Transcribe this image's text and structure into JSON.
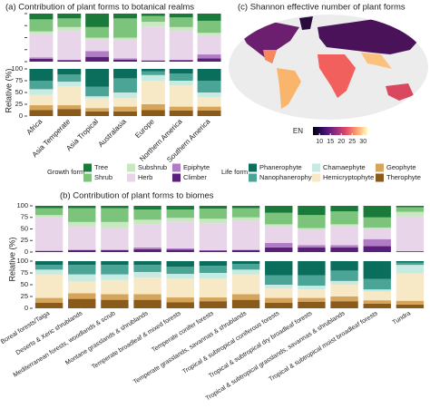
{
  "chart_data": [
    {
      "type": "stacked_bar",
      "title": "(a) Contribution of plant forms to botanical realms",
      "ylabel": "Relative (%)",
      "categories": [
        "Africa",
        "Asia Temperate",
        "Asia Tropical",
        "Australasia",
        "Europe",
        "Northern America",
        "Southern America"
      ],
      "ylim": [
        0,
        100
      ],
      "yticks": [
        0,
        25,
        50,
        75,
        100
      ],
      "growth_form": [
        [
          12,
          10,
          28,
          10,
          5,
          8,
          15
        ],
        [
          25,
          18,
          22,
          40,
          12,
          20,
          25
        ],
        [
          6,
          8,
          3,
          5,
          10,
          8,
          5
        ],
        [
          48,
          60,
          25,
          38,
          70,
          60,
          40
        ],
        [
          3,
          1,
          12,
          3,
          1,
          1,
          8
        ],
        [
          6,
          3,
          10,
          4,
          2,
          3,
          7
        ]
      ],
      "life_form": [
        [
          25,
          12,
          38,
          20,
          5,
          10,
          25
        ],
        [
          18,
          15,
          20,
          30,
          8,
          15,
          25
        ],
        [
          12,
          10,
          5,
          12,
          12,
          10,
          10
        ],
        [
          22,
          40,
          20,
          18,
          50,
          45,
          20
        ],
        [
          10,
          8,
          7,
          10,
          12,
          8,
          8
        ],
        [
          13,
          15,
          10,
          10,
          13,
          12,
          12
        ]
      ]
    },
    {
      "type": "stacked_bar",
      "title": "(b) Contribution of plant forms to biomes",
      "ylabel": "Relative (%)",
      "categories": [
        "Boreal forests/Taiga",
        "Deserts & Xeric shrublands",
        "Mediterranean forests, woodlands & scrub",
        "Montane grasslands & shrublands",
        "Temperate broadleaf & mixed forests",
        "Temperate conifer forests",
        "Temperate grasslands, savannas & shrublands",
        "Tropical & subtropical coniferous forests",
        "Tropical & subtropical dry broadleaf forests",
        "Tropical & subtropical grasslands, savannas & shrublands",
        "Tropical & subtropical moist broadleaf forests",
        "Tundra"
      ],
      "ylim": [
        0,
        100
      ],
      "yticks": [
        0,
        25,
        50,
        75,
        100
      ],
      "growth_form": [
        [
          5,
          5,
          5,
          8,
          8,
          6,
          5,
          15,
          20,
          12,
          25,
          3
        ],
        [
          15,
          30,
          30,
          22,
          18,
          22,
          20,
          25,
          28,
          28,
          22,
          10
        ],
        [
          5,
          10,
          12,
          10,
          8,
          10,
          8,
          5,
          4,
          5,
          3,
          10
        ],
        [
          72,
          50,
          48,
          50,
          58,
          58,
          62,
          35,
          33,
          40,
          22,
          75
        ],
        [
          1,
          1,
          1,
          4,
          3,
          1,
          1,
          10,
          5,
          5,
          15,
          1
        ],
        [
          2,
          4,
          4,
          6,
          5,
          3,
          4,
          10,
          10,
          10,
          13,
          1
        ]
      ],
      "life_form": [
        [
          8,
          8,
          8,
          8,
          12,
          10,
          6,
          30,
          30,
          20,
          38,
          3
        ],
        [
          10,
          20,
          20,
          15,
          15,
          15,
          12,
          20,
          22,
          22,
          22,
          5
        ],
        [
          10,
          15,
          12,
          12,
          10,
          12,
          10,
          8,
          8,
          8,
          5,
          18
        ],
        [
          50,
          25,
          30,
          35,
          40,
          40,
          42,
          20,
          18,
          25,
          18,
          58
        ],
        [
          10,
          12,
          12,
          12,
          10,
          8,
          12,
          10,
          8,
          10,
          7,
          8
        ],
        [
          12,
          20,
          18,
          18,
          13,
          15,
          18,
          12,
          14,
          15,
          10,
          8
        ]
      ]
    },
    {
      "type": "map",
      "title": "(c) Shannon effective number of plant forms",
      "colorbar": {
        "label": "EN",
        "clim": [
          7,
          32
        ],
        "ticks": [
          10,
          15,
          20,
          25,
          30
        ],
        "colors": [
          "#000004",
          "#3b0f70",
          "#8c2981",
          "#de4968",
          "#fe9f6d",
          "#fcfdbf"
        ]
      }
    }
  ],
  "legends": {
    "growth_form": {
      "title": "Growth form",
      "series": [
        {
          "name": "Tree",
          "color": "#1a7a3a"
        },
        {
          "name": "Shrub",
          "color": "#7cc47c"
        },
        {
          "name": "Subshrub",
          "color": "#c8e8c0"
        },
        {
          "name": "Herb",
          "color": "#e8d5ea"
        },
        {
          "name": "Epiphyte",
          "color": "#b07cc6"
        },
        {
          "name": "Climber",
          "color": "#5a1f7a"
        }
      ]
    },
    "life_form": {
      "title": "Life form",
      "series": [
        {
          "name": "Phanerophyte",
          "color": "#0b6e5c"
        },
        {
          "name": "Nanophanerophyte",
          "color": "#4aa596"
        },
        {
          "name": "Chamaephyte",
          "color": "#c7ebe2"
        },
        {
          "name": "Hemicryptophyte",
          "color": "#f7e9c6"
        },
        {
          "name": "Geophyte",
          "color": "#d6a55a"
        },
        {
          "name": "Therophyte",
          "color": "#8a5a1a"
        }
      ]
    }
  }
}
